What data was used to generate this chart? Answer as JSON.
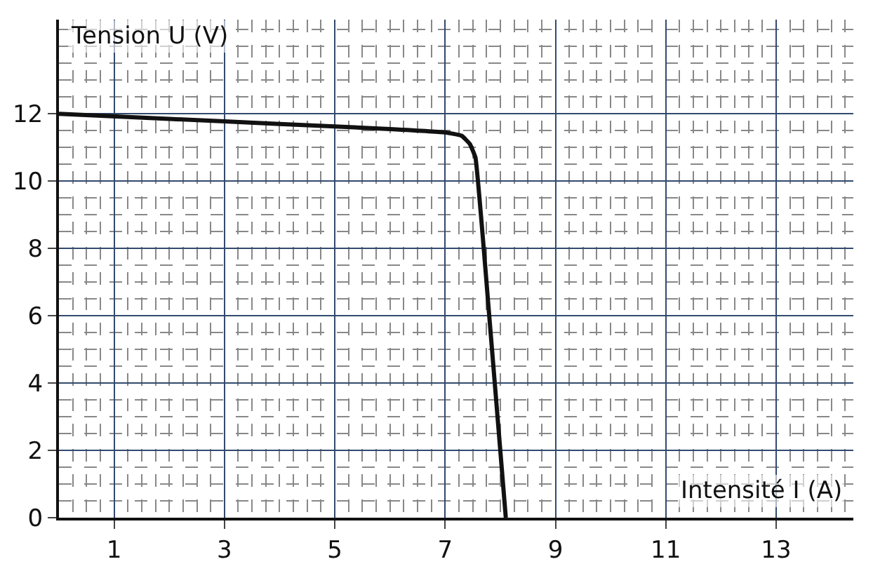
{
  "chart_data": {
    "type": "line",
    "xlabel": "Intensité I (A)",
    "ylabel": "Tension U (V)",
    "x": [
      0,
      2,
      4,
      6,
      7,
      7.3,
      7.45,
      7.55,
      7.8,
      8.1
    ],
    "series": [
      {
        "color": "#111111",
        "values": [
          12,
          11.85,
          11.7,
          11.55,
          11.45,
          11.35,
          11.1,
          10.7,
          6,
          0
        ]
      }
    ],
    "xlim": [
      0,
      14.4
    ],
    "ylim": [
      0,
      14.8
    ],
    "xticks": [
      1,
      3,
      5,
      7,
      9,
      11,
      13
    ],
    "yticks": [
      0,
      2,
      4,
      6,
      8,
      10,
      12
    ],
    "grid": true,
    "marker": "none",
    "line_style": "solid"
  }
}
